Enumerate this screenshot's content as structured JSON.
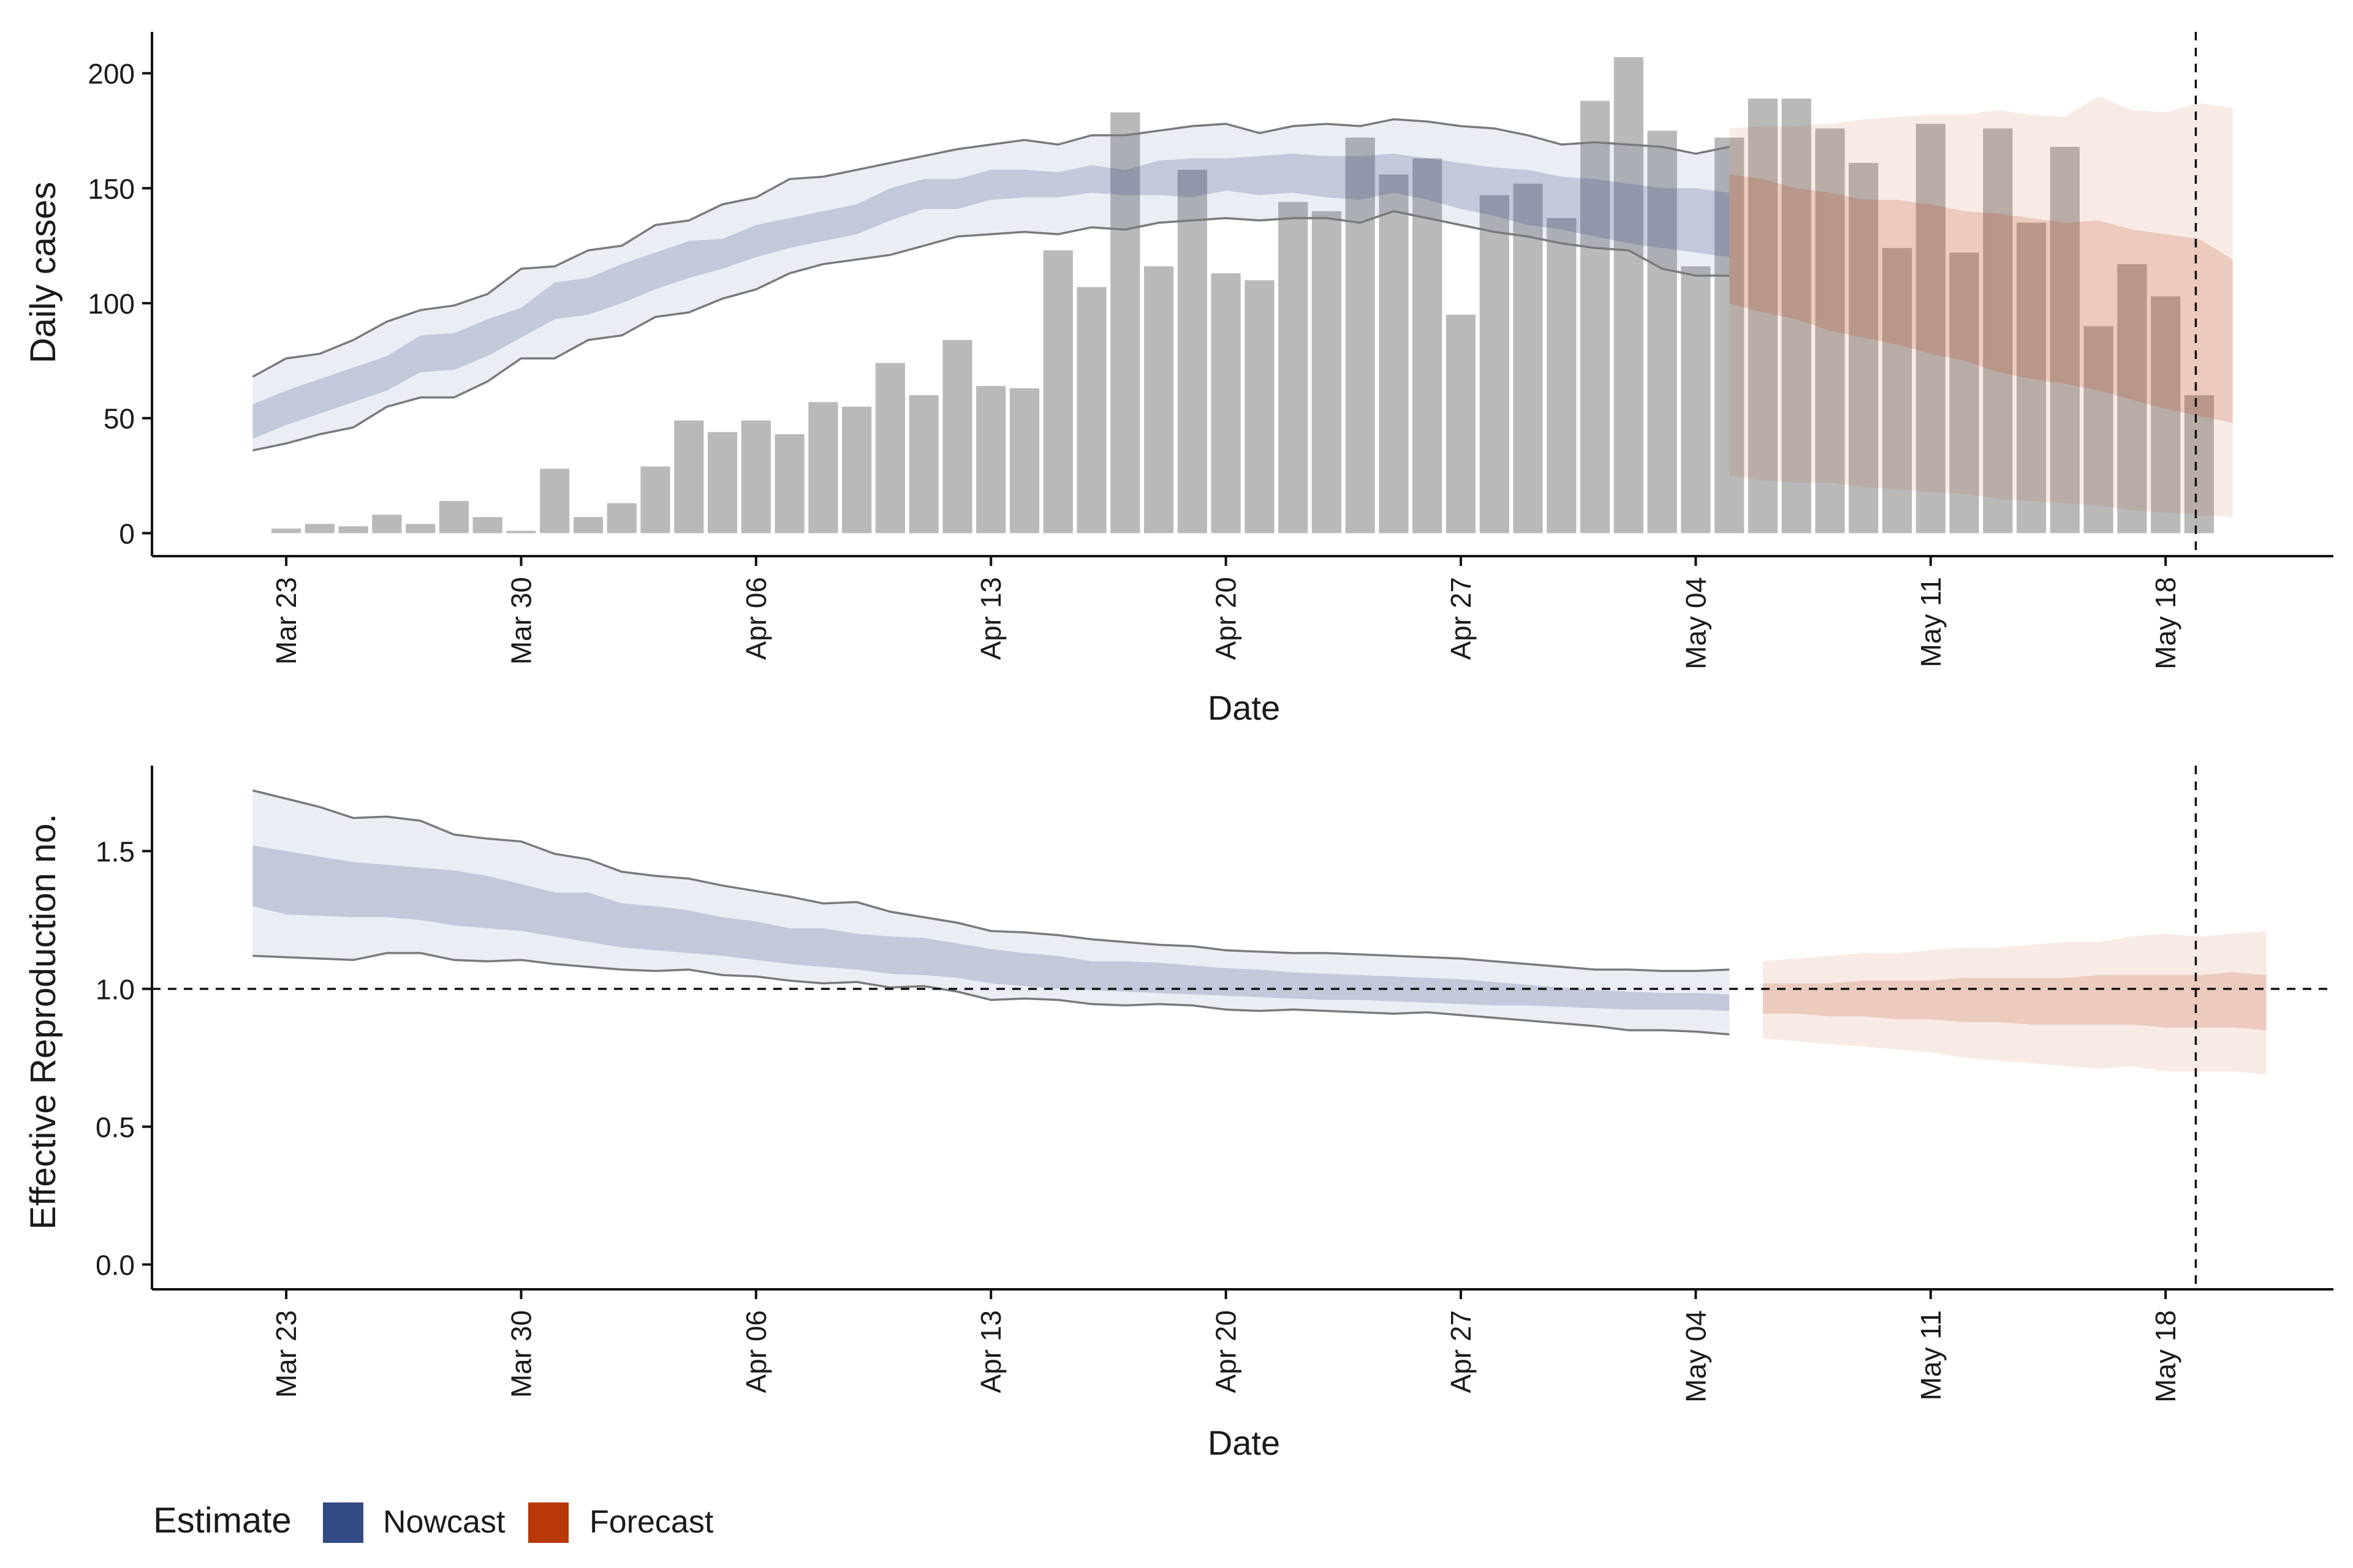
{
  "colors": {
    "nowcast": "#334a87",
    "forecast": "#b83a0a",
    "bars": "#b9b9b9",
    "ci_line": "#7a7a7a"
  },
  "legend": {
    "title": "Estimate",
    "items": [
      {
        "label": "Nowcast",
        "color": "#334a87"
      },
      {
        "label": "Forecast",
        "color": "#b83a0a"
      }
    ],
    "placement": "bottom-left"
  },
  "chart_data": [
    {
      "type": "bar",
      "panel": "top",
      "xlabel": "Date",
      "ylabel": "Daily cases",
      "ylim": [
        -10,
        218
      ],
      "yticks": [
        0,
        50,
        100,
        150,
        200
      ],
      "xlim": [
        "2020-03-19",
        "2020-05-23"
      ],
      "xticks": [
        {
          "date": "2020-03-23",
          "label": "Mar 23"
        },
        {
          "date": "2020-03-30",
          "label": "Mar 30"
        },
        {
          "date": "2020-04-06",
          "label": "Apr 06"
        },
        {
          "date": "2020-04-13",
          "label": "Apr 13"
        },
        {
          "date": "2020-04-20",
          "label": "Apr 20"
        },
        {
          "date": "2020-04-27",
          "label": "Apr 27"
        },
        {
          "date": "2020-05-04",
          "label": "May 04"
        },
        {
          "date": "2020-05-11",
          "label": "May 11"
        },
        {
          "date": "2020-05-18",
          "label": "May 18"
        }
      ],
      "bars": {
        "start_date": "2020-03-23",
        "values": [
          2,
          4,
          3,
          8,
          4,
          14,
          7,
          1,
          28,
          7,
          13,
          29,
          49,
          44,
          49,
          43,
          57,
          55,
          74,
          60,
          84,
          64,
          63,
          123,
          107,
          183,
          116,
          158,
          113,
          110,
          144,
          140,
          172,
          156,
          163,
          95,
          147,
          152,
          137,
          188,
          207,
          175,
          116,
          172,
          189,
          189,
          176,
          161,
          124,
          178,
          122,
          176,
          135,
          168,
          90,
          117,
          103,
          60
        ]
      },
      "nowcast": {
        "start_date": "2020-03-22",
        "lower90": [
          36,
          39,
          43,
          46,
          55,
          59,
          59,
          66,
          76,
          76,
          84,
          86,
          94,
          96,
          102,
          106,
          113,
          117,
          119,
          121,
          125,
          129,
          130,
          131,
          130,
          133,
          132,
          135,
          136,
          137,
          136,
          137,
          137,
          135,
          140,
          137,
          134,
          131,
          129,
          126,
          124,
          123,
          115,
          112,
          112
        ],
        "upper90": [
          68,
          76,
          78,
          84,
          92,
          97,
          99,
          104,
          115,
          116,
          123,
          125,
          134,
          136,
          143,
          146,
          154,
          155,
          158,
          161,
          164,
          167,
          169,
          171,
          169,
          173,
          173,
          175,
          177,
          178,
          174,
          177,
          178,
          177,
          180,
          179,
          177,
          176,
          173,
          169,
          170,
          169,
          168,
          165,
          168
        ],
        "lower50": [
          41,
          47,
          52,
          57,
          62,
          70,
          71,
          77,
          85,
          93,
          95,
          100,
          106,
          111,
          115,
          120,
          124,
          127,
          130,
          136,
          141,
          141,
          145,
          146,
          146,
          148,
          147,
          147,
          146,
          149,
          147,
          148,
          146,
          145,
          148,
          145,
          141,
          138,
          134,
          132,
          129,
          126,
          124,
          122,
          120
        ],
        "upper50": [
          56,
          62,
          67,
          72,
          77,
          86,
          87,
          93,
          98,
          109,
          111,
          117,
          122,
          127,
          128,
          134,
          137,
          140,
          143,
          150,
          154,
          154,
          158,
          158,
          157,
          160,
          158,
          162,
          163,
          163,
          164,
          165,
          164,
          164,
          165,
          163,
          161,
          159,
          158,
          155,
          154,
          152,
          150,
          150,
          148
        ]
      },
      "forecast": {
        "start_date": "2020-05-05",
        "lower90": [
          25,
          23,
          22,
          22,
          20,
          19,
          18,
          17,
          15,
          14,
          13,
          12,
          10,
          9,
          8,
          7
        ],
        "upper90": [
          176,
          177,
          177,
          178,
          180,
          181,
          182,
          182,
          184,
          182,
          181,
          190,
          184,
          183,
          187,
          185
        ],
        "lower50": [
          100,
          96,
          93,
          88,
          85,
          82,
          78,
          75,
          70,
          67,
          65,
          62,
          58,
          54,
          51,
          48
        ],
        "upper50": [
          156,
          154,
          150,
          148,
          145,
          145,
          143,
          140,
          139,
          137,
          135,
          136,
          132,
          130,
          128,
          119
        ]
      },
      "vline_date": "2020-05-18",
      "vline_day_offset": 0.9
    },
    {
      "type": "area",
      "panel": "bottom",
      "xlabel": "Date",
      "ylabel": "Effective Reproduction no.",
      "ylim": [
        -0.09,
        1.81
      ],
      "yticks": [
        {
          "value": 0,
          "label": "0.0"
        },
        {
          "value": 0.5,
          "label": "0.5"
        },
        {
          "value": 1,
          "label": "1.0"
        },
        {
          "value": 1.5,
          "label": "1.5"
        }
      ],
      "xlim": [
        "2020-03-19",
        "2020-05-23"
      ],
      "xticks": [
        {
          "date": "2020-03-23",
          "label": "Mar 23"
        },
        {
          "date": "2020-03-30",
          "label": "Mar 30"
        },
        {
          "date": "2020-04-06",
          "label": "Apr 06"
        },
        {
          "date": "2020-04-13",
          "label": "Apr 13"
        },
        {
          "date": "2020-04-20",
          "label": "Apr 20"
        },
        {
          "date": "2020-04-27",
          "label": "Apr 27"
        },
        {
          "date": "2020-05-04",
          "label": "May 04"
        },
        {
          "date": "2020-05-11",
          "label": "May 11"
        },
        {
          "date": "2020-05-18",
          "label": "May 18"
        }
      ],
      "nowcast": {
        "start_date": "2020-03-22",
        "lower90": [
          1.12,
          1.115,
          1.11,
          1.105,
          1.13,
          1.13,
          1.105,
          1.1,
          1.105,
          1.09,
          1.08,
          1.07,
          1.065,
          1.07,
          1.05,
          1.045,
          1.03,
          1.02,
          1.025,
          1.005,
          1.01,
          0.99,
          0.96,
          0.965,
          0.96,
          0.945,
          0.94,
          0.945,
          0.94,
          0.925,
          0.92,
          0.925,
          0.92,
          0.915,
          0.91,
          0.915,
          0.905,
          0.895,
          0.885,
          0.875,
          0.865,
          0.85,
          0.85,
          0.845,
          0.835
        ],
        "upper90": [
          1.72,
          1.69,
          1.66,
          1.62,
          1.625,
          1.61,
          1.56,
          1.545,
          1.535,
          1.49,
          1.47,
          1.425,
          1.41,
          1.4,
          1.375,
          1.355,
          1.335,
          1.31,
          1.315,
          1.28,
          1.26,
          1.24,
          1.21,
          1.205,
          1.195,
          1.18,
          1.17,
          1.16,
          1.155,
          1.14,
          1.135,
          1.13,
          1.13,
          1.125,
          1.12,
          1.115,
          1.11,
          1.1,
          1.09,
          1.08,
          1.07,
          1.07,
          1.065,
          1.065,
          1.07
        ],
        "lower50": [
          1.3,
          1.27,
          1.265,
          1.26,
          1.26,
          1.25,
          1.23,
          1.22,
          1.21,
          1.19,
          1.17,
          1.15,
          1.14,
          1.13,
          1.12,
          1.105,
          1.09,
          1.08,
          1.07,
          1.055,
          1.05,
          1.04,
          1.02,
          1.01,
          1.0,
          0.995,
          0.99,
          0.985,
          0.98,
          0.975,
          0.97,
          0.965,
          0.96,
          0.96,
          0.955,
          0.95,
          0.945,
          0.94,
          0.94,
          0.935,
          0.93,
          0.925,
          0.925,
          0.925,
          0.92
        ],
        "upper50": [
          1.52,
          1.5,
          1.48,
          1.46,
          1.45,
          1.44,
          1.43,
          1.41,
          1.38,
          1.35,
          1.35,
          1.31,
          1.3,
          1.285,
          1.26,
          1.245,
          1.22,
          1.22,
          1.2,
          1.19,
          1.185,
          1.165,
          1.145,
          1.13,
          1.12,
          1.1,
          1.1,
          1.095,
          1.085,
          1.075,
          1.07,
          1.06,
          1.055,
          1.05,
          1.045,
          1.04,
          1.035,
          1.025,
          1.015,
          1.005,
          0.995,
          0.99,
          0.985,
          0.985,
          0.98
        ]
      },
      "forecast": {
        "start_date": "2020-05-06",
        "lower90": [
          0.82,
          0.81,
          0.8,
          0.79,
          0.78,
          0.77,
          0.75,
          0.74,
          0.73,
          0.72,
          0.71,
          0.72,
          0.7,
          0.7,
          0.7,
          0.69
        ],
        "upper90": [
          1.1,
          1.11,
          1.12,
          1.13,
          1.13,
          1.14,
          1.15,
          1.15,
          1.16,
          1.17,
          1.17,
          1.19,
          1.2,
          1.19,
          1.2,
          1.21
        ],
        "lower50": [
          0.91,
          0.91,
          0.9,
          0.9,
          0.89,
          0.89,
          0.88,
          0.88,
          0.87,
          0.87,
          0.87,
          0.87,
          0.86,
          0.86,
          0.86,
          0.85
        ],
        "upper50": [
          1.02,
          1.02,
          1.02,
          1.03,
          1.03,
          1.03,
          1.04,
          1.04,
          1.04,
          1.04,
          1.05,
          1.05,
          1.05,
          1.05,
          1.06,
          1.05
        ]
      },
      "hline_value": 1.0,
      "vline_date": "2020-05-18",
      "vline_day_offset": 0.9
    }
  ]
}
